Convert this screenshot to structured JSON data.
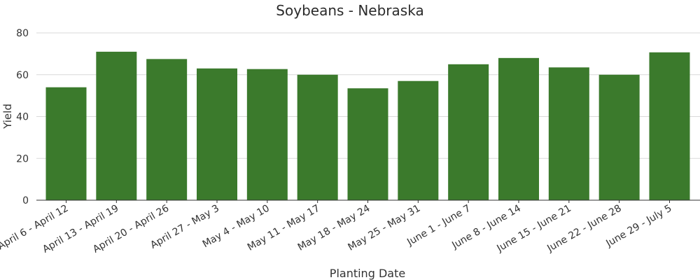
{
  "colors": {
    "bar": "#3b7a2c",
    "grid": "#d9d9d9",
    "axis": "#333333",
    "text": "#333333",
    "title": "#2b2b2b"
  },
  "chart_data": {
    "type": "bar",
    "title": "Soybeans - Nebraska",
    "xlabel": "Planting Date",
    "ylabel": "Yield",
    "ylim": [
      0,
      80
    ],
    "yticks": [
      0,
      20,
      40,
      60,
      80
    ],
    "grid": true,
    "legend": "none",
    "categories": [
      "April 6 - April 12",
      "April 13 - April 19",
      "April 20 - April 26",
      "April 27 - May 3",
      "May 4 - May 10",
      "May 11 - May 17",
      "May 18 - May 24",
      "May 25 - May 31",
      "June 1 - June 7",
      "June 8 - June 14",
      "June 15 - June 21",
      "June 22 - June 28",
      "June 29 - July 5"
    ],
    "values": [
      54,
      71,
      67.5,
      63,
      62.7,
      60,
      53.5,
      57,
      65,
      68,
      63.5,
      60,
      70.7
    ]
  }
}
